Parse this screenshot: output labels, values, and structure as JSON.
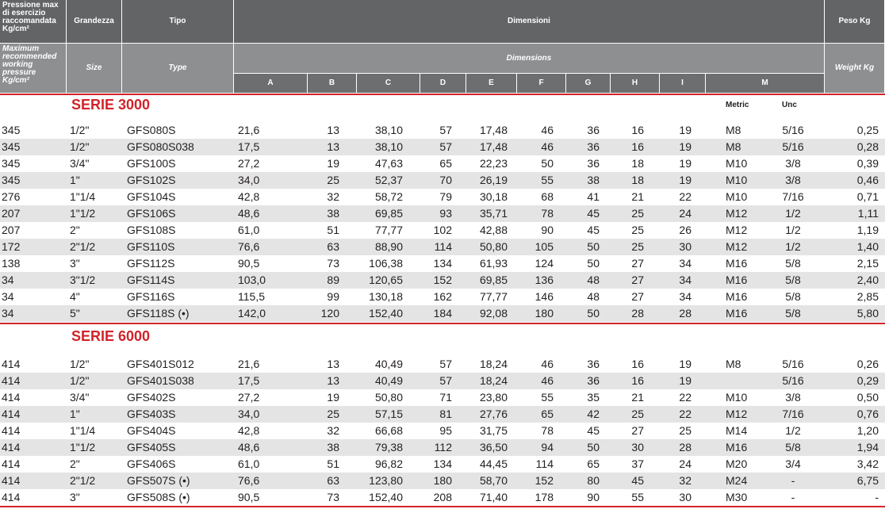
{
  "header": {
    "italian": [
      "Pressione max di esercizio raccomandata Kg/cm²",
      "Grandezza",
      "Tipo",
      "Dimensioni",
      "Peso Kg"
    ],
    "english": [
      "Maximum recommended working pressure Kg/cm²",
      "Size",
      "Type",
      "Dimensions",
      "Weight Kg"
    ],
    "letters": [
      "A",
      "B",
      "C",
      "D",
      "E",
      "F",
      "G",
      "H",
      "I",
      "M"
    ],
    "metric": "Metric",
    "unc": "Unc"
  },
  "series": [
    {
      "title": "SERIE 3000",
      "rows": [
        [
          "345",
          "1/2\"",
          "GFS080S",
          "21,6",
          "13",
          "38,10",
          "57",
          "17,48",
          "46",
          "36",
          "16",
          "19",
          "M8",
          "5/16",
          "0,25"
        ],
        [
          "345",
          "1/2\"",
          "GFS080S038",
          "17,5",
          "13",
          "38,10",
          "57",
          "17,48",
          "46",
          "36",
          "16",
          "19",
          "M8",
          "5/16",
          "0,28"
        ],
        [
          "345",
          "3/4\"",
          "GFS100S",
          "27,2",
          "19",
          "47,63",
          "65",
          "22,23",
          "50",
          "36",
          "18",
          "19",
          "M10",
          "3/8",
          "0,39"
        ],
        [
          "345",
          "1\"",
          "GFS102S",
          "34,0",
          "25",
          "52,37",
          "70",
          "26,19",
          "55",
          "38",
          "18",
          "19",
          "M10",
          "3/8",
          "0,46"
        ],
        [
          "276",
          "1\"1/4",
          "GFS104S",
          "42,8",
          "32",
          "58,72",
          "79",
          "30,18",
          "68",
          "41",
          "21",
          "22",
          "M10",
          "7/16",
          "0,71"
        ],
        [
          "207",
          "1\"1/2",
          "GFS106S",
          "48,6",
          "38",
          "69,85",
          "93",
          "35,71",
          "78",
          "45",
          "25",
          "24",
          "M12",
          "1/2",
          "1,11"
        ],
        [
          "207",
          "2\"",
          "GFS108S",
          "61,0",
          "51",
          "77,77",
          "102",
          "42,88",
          "90",
          "45",
          "25",
          "26",
          "M12",
          "1/2",
          "1,19"
        ],
        [
          "172",
          "2\"1/2",
          "GFS110S",
          "76,6",
          "63",
          "88,90",
          "114",
          "50,80",
          "105",
          "50",
          "25",
          "30",
          "M12",
          "1/2",
          "1,40"
        ],
        [
          "138",
          "3\"",
          "GFS112S",
          "90,5",
          "73",
          "106,38",
          "134",
          "61,93",
          "124",
          "50",
          "27",
          "34",
          "M16",
          "5/8",
          "2,15"
        ],
        [
          "34",
          "3\"1/2",
          "GFS114S",
          "103,0",
          "89",
          "120,65",
          "152",
          "69,85",
          "136",
          "48",
          "27",
          "34",
          "M16",
          "5/8",
          "2,40"
        ],
        [
          "34",
          "4\"",
          "GFS116S",
          "115,5",
          "99",
          "130,18",
          "162",
          "77,77",
          "146",
          "48",
          "27",
          "34",
          "M16",
          "5/8",
          "2,85"
        ],
        [
          "34",
          "5\"",
          "GFS118S (•)",
          "142,0",
          "120",
          "152,40",
          "184",
          "92,08",
          "180",
          "50",
          "28",
          "28",
          "M16",
          "5/8",
          "5,80"
        ]
      ]
    },
    {
      "title": "SERIE 6000",
      "rows": [
        [
          "414",
          "1/2\"",
          "GFS401S012",
          "21,6",
          "13",
          "40,49",
          "57",
          "18,24",
          "46",
          "36",
          "16",
          "19",
          "M8",
          "5/16",
          "0,26"
        ],
        [
          "414",
          "1/2\"",
          "GFS401S038",
          "17,5",
          "13",
          "40,49",
          "57",
          "18,24",
          "46",
          "36",
          "16",
          "19",
          null,
          "5/16",
          "0,29"
        ],
        [
          "414",
          "3/4\"",
          "GFS402S",
          "27,2",
          "19",
          "50,80",
          "71",
          "23,80",
          "55",
          "35",
          "21",
          "22",
          "M10",
          "3/8",
          "0,50"
        ],
        [
          "414",
          "1\"",
          "GFS403S",
          "34,0",
          "25",
          "57,15",
          "81",
          "27,76",
          "65",
          "42",
          "25",
          "22",
          "M12",
          "7/16",
          "0,76"
        ],
        [
          "414",
          "1\"1/4",
          "GFS404S",
          "42,8",
          "32",
          "66,68",
          "95",
          "31,75",
          "78",
          "45",
          "27",
          "25",
          "M14",
          "1/2",
          "1,20"
        ],
        [
          "414",
          "1\"1/2",
          "GFS405S",
          "48,6",
          "38",
          "79,38",
          "112",
          "36,50",
          "94",
          "50",
          "30",
          "28",
          "M16",
          "5/8",
          "1,94"
        ],
        [
          "414",
          "2\"",
          "GFS406S",
          "61,0",
          "51",
          "96,82",
          "134",
          "44,45",
          "114",
          "65",
          "37",
          "24",
          "M20",
          "3/4",
          "3,42"
        ],
        [
          "414",
          "2\"1/2",
          "GFS507S (•)",
          "76,6",
          "63",
          "123,80",
          "180",
          "58,70",
          "152",
          "80",
          "45",
          "32",
          "M24",
          "-",
          "6,75"
        ],
        [
          "414",
          "3\"",
          "GFS508S (•)",
          "90,5",
          "73",
          "152,40",
          "208",
          "71,40",
          "178",
          "90",
          "55",
          "30",
          "M30",
          "-",
          "-"
        ]
      ]
    }
  ]
}
